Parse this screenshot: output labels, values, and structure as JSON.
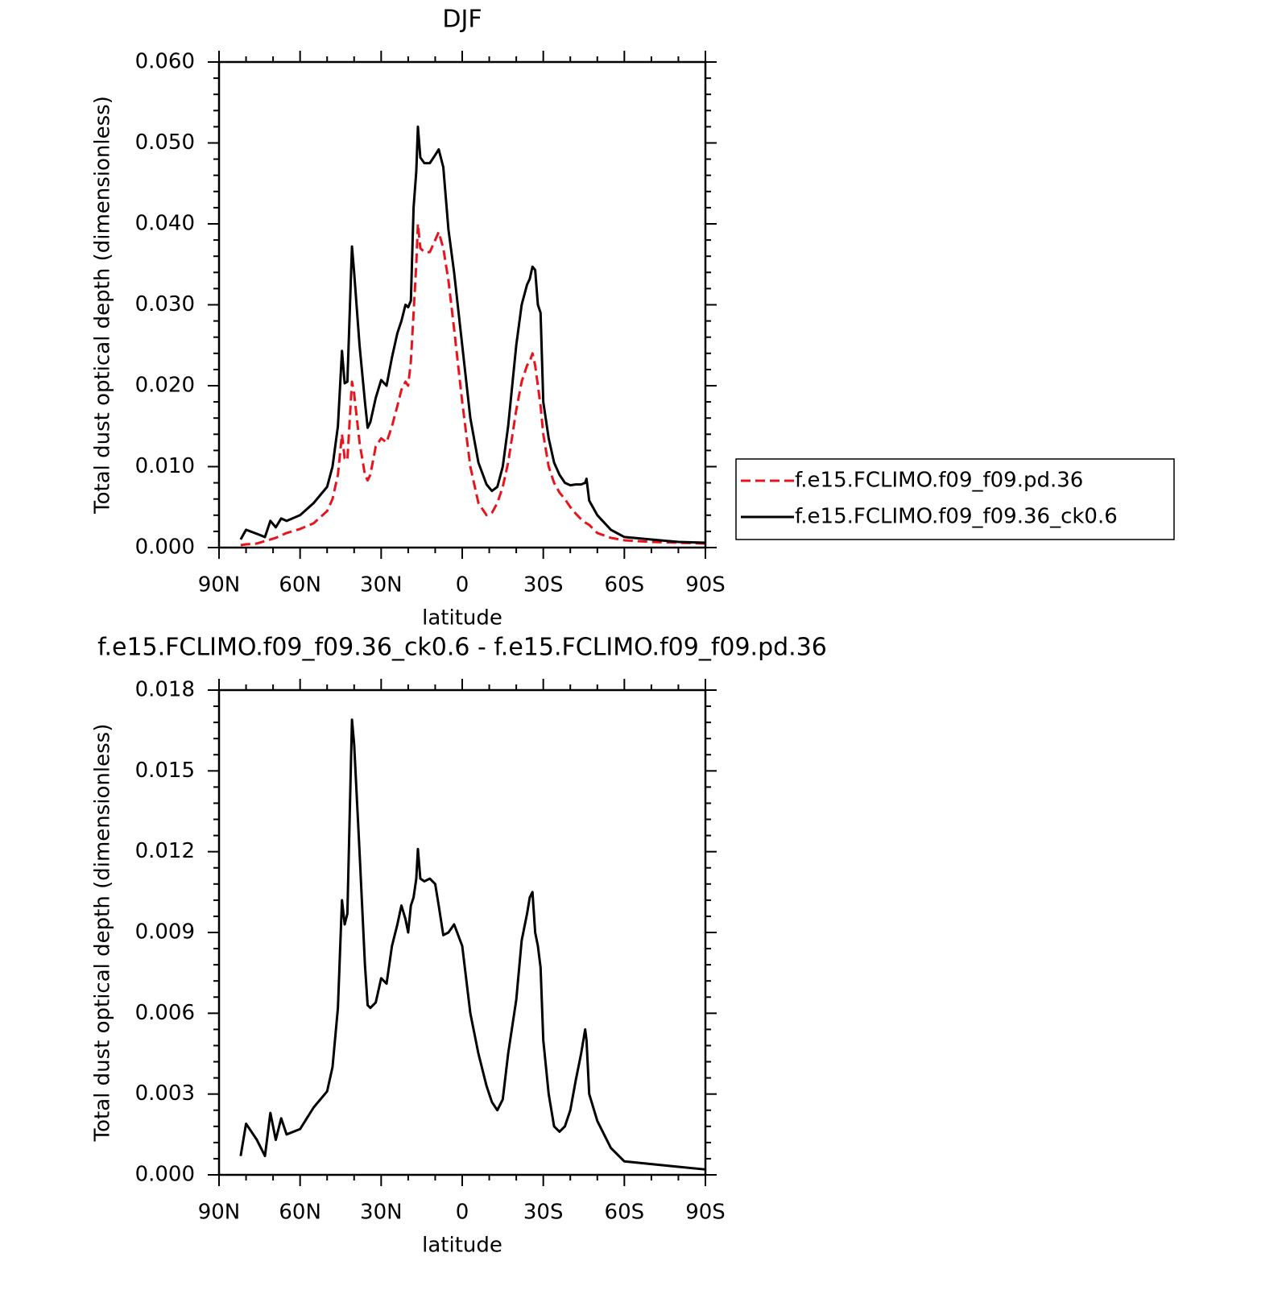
{
  "chart_data": [
    {
      "type": "line",
      "title": "DJF",
      "xlabel": "latitude",
      "ylabel": "Total dust optical depth (dimensionless)",
      "x": [
        82,
        80,
        76,
        73,
        71,
        69,
        67,
        65,
        60,
        55,
        50,
        48,
        46,
        44.5,
        43.5,
        42.5,
        40.8,
        40,
        38,
        36,
        35,
        34,
        32,
        30,
        28,
        26,
        24,
        22.5,
        21,
        20,
        19,
        18,
        17,
        16.4,
        15.5,
        14,
        12,
        10,
        8.7,
        7,
        5.1,
        3,
        0,
        -3,
        -6,
        -9,
        -11,
        -13,
        -15,
        -17,
        -20,
        -22,
        -24,
        -25,
        -26,
        -27,
        -28,
        -29,
        -30,
        -32,
        -34,
        -36,
        -38,
        -40,
        -42,
        -44,
        -45.5,
        -46,
        -47,
        -50,
        -55,
        -60,
        -70,
        -80,
        -90
      ],
      "series": [
        {
          "name": "f.e15.FCLIMO.f09_f09.pd.36",
          "color": "#e8141c",
          "dash": true,
          "values": [
            0.0003,
            0.0004,
            0.0005,
            0.0008,
            0.001,
            0.0012,
            0.0015,
            0.0018,
            0.0023,
            0.003,
            0.0045,
            0.006,
            0.009,
            0.014,
            0.011,
            0.0108,
            0.0205,
            0.019,
            0.013,
            0.009,
            0.0083,
            0.009,
            0.0125,
            0.0135,
            0.013,
            0.015,
            0.0175,
            0.0195,
            0.0205,
            0.02,
            0.023,
            0.029,
            0.035,
            0.04,
            0.037,
            0.0365,
            0.0365,
            0.038,
            0.039,
            0.037,
            0.033,
            0.027,
            0.018,
            0.01,
            0.0055,
            0.004,
            0.0043,
            0.0055,
            0.0075,
            0.0105,
            0.017,
            0.0205,
            0.0225,
            0.023,
            0.024,
            0.0225,
            0.02,
            0.0175,
            0.014,
            0.01,
            0.008,
            0.0068,
            0.006,
            0.005,
            0.0042,
            0.0035,
            0.0031,
            0.003,
            0.0028,
            0.0018,
            0.0012,
            0.0009,
            0.0007,
            0.0006,
            0.0005
          ]
        },
        {
          "name": "f.e15.FCLIMO.f09_f09.36_ck0.6",
          "color": "#000000",
          "dash": false,
          "values": [
            0.001,
            0.0022,
            0.0017,
            0.0013,
            0.0033,
            0.0025,
            0.0036,
            0.0033,
            0.004,
            0.0055,
            0.0075,
            0.01,
            0.015,
            0.0243,
            0.0203,
            0.0205,
            0.0372,
            0.034,
            0.025,
            0.018,
            0.0148,
            0.0155,
            0.0185,
            0.0207,
            0.02,
            0.0235,
            0.0265,
            0.028,
            0.03,
            0.0297,
            0.0305,
            0.042,
            0.0465,
            0.052,
            0.0482,
            0.0475,
            0.0475,
            0.0485,
            0.0492,
            0.047,
            0.0393,
            0.034,
            0.025,
            0.016,
            0.0105,
            0.0078,
            0.007,
            0.0075,
            0.01,
            0.015,
            0.025,
            0.03,
            0.0325,
            0.0332,
            0.0347,
            0.0343,
            0.03,
            0.029,
            0.018,
            0.0135,
            0.0105,
            0.009,
            0.008,
            0.0077,
            0.0078,
            0.0078,
            0.008,
            0.0085,
            0.0058,
            0.004,
            0.0022,
            0.0013,
            0.001,
            0.0007,
            0.0006
          ]
        }
      ],
      "xlim": [
        90,
        -90
      ],
      "xticks": [
        {
          "value": 90,
          "label": "90N"
        },
        {
          "value": 60,
          "label": "60N"
        },
        {
          "value": 30,
          "label": "30N"
        },
        0,
        {
          "value": -30,
          "label": "30S"
        },
        {
          "value": -60,
          "label": "60S"
        },
        {
          "value": -90,
          "label": "90S"
        }
      ],
      "ylim": [
        0,
        0.06
      ],
      "yticks": [
        {
          "value": 0,
          "label": "0.000"
        },
        {
          "value": 0.01,
          "label": "0.010"
        },
        {
          "value": 0.02,
          "label": "0.020"
        },
        {
          "value": 0.03,
          "label": "0.030"
        },
        {
          "value": 0.04,
          "label": "0.040"
        },
        {
          "value": 0.05,
          "label": "0.050"
        },
        {
          "value": 0.06,
          "label": "0.060"
        }
      ],
      "legend": "right"
    },
    {
      "type": "line",
      "title": "f.e15.FCLIMO.f09_f09.36_ck0.6 - f.e15.FCLIMO.f09_f09.pd.36",
      "xlabel": "latitude",
      "ylabel": "Total dust optical depth (dimensionless)",
      "x": [
        82,
        80,
        76,
        73,
        71,
        69,
        67,
        65,
        60,
        55,
        50,
        48,
        46,
        44.5,
        43.5,
        42.5,
        40.8,
        40,
        38,
        36,
        35,
        34,
        32,
        30,
        28,
        26,
        24,
        22.5,
        21,
        20,
        19,
        18,
        17,
        16.4,
        15.5,
        14,
        12,
        10,
        8.7,
        7,
        5.1,
        3,
        0,
        -3,
        -6,
        -9,
        -11,
        -13,
        -15,
        -17,
        -20,
        -22,
        -24,
        -25,
        -26,
        -27,
        -28,
        -29,
        -30,
        -32,
        -34,
        -36,
        -38,
        -40,
        -42,
        -44,
        -45.5,
        -46,
        -47,
        -50,
        -55,
        -60,
        -70,
        -80,
        -90
      ],
      "series": [
        {
          "color": "#000000",
          "dash": false,
          "values": [
            0.0007,
            0.0019,
            0.0013,
            0.0007,
            0.0023,
            0.0013,
            0.0021,
            0.0015,
            0.0017,
            0.0025,
            0.0031,
            0.004,
            0.0062,
            0.0102,
            0.0093,
            0.0097,
            0.0169,
            0.016,
            0.012,
            0.0078,
            0.0063,
            0.0062,
            0.0064,
            0.0073,
            0.0071,
            0.0085,
            0.0093,
            0.01,
            0.0095,
            0.009,
            0.01,
            0.0103,
            0.011,
            0.0121,
            0.011,
            0.0109,
            0.011,
            0.0108,
            0.01,
            0.0089,
            0.009,
            0.0093,
            0.0085,
            0.006,
            0.0045,
            0.0033,
            0.0027,
            0.0024,
            0.0028,
            0.0045,
            0.0065,
            0.0087,
            0.0097,
            0.0103,
            0.0105,
            0.009,
            0.0085,
            0.0077,
            0.005,
            0.003,
            0.0018,
            0.0016,
            0.0018,
            0.0024,
            0.0035,
            0.0045,
            0.0054,
            0.005,
            0.003,
            0.002,
            0.001,
            0.0005,
            0.0004,
            0.0003,
            0.0002
          ]
        }
      ],
      "xlim": [
        90,
        -90
      ],
      "xticks": [
        {
          "value": 90,
          "label": "90N"
        },
        {
          "value": 60,
          "label": "60N"
        },
        {
          "value": 30,
          "label": "30N"
        },
        0,
        {
          "value": -30,
          "label": "30S"
        },
        {
          "value": -60,
          "label": "60S"
        },
        {
          "value": -90,
          "label": "90S"
        }
      ],
      "ylim": [
        0,
        0.018
      ],
      "yticks": [
        {
          "value": 0,
          "label": "0.000"
        },
        0.003,
        0.006,
        0.009,
        0.012,
        0.015,
        0.018
      ]
    }
  ]
}
